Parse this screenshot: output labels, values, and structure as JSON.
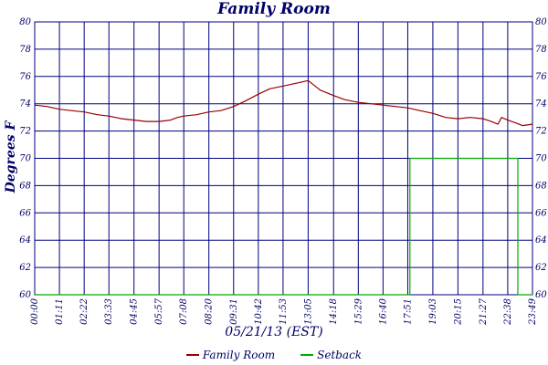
{
  "chart_data": {
    "type": "line",
    "title": "Family Room",
    "xlabel": "05/21/13 (EST)",
    "ylabel": "Degrees F",
    "ylim": [
      60,
      80
    ],
    "yticks": [
      60,
      62,
      64,
      66,
      68,
      70,
      72,
      74,
      76,
      78,
      80
    ],
    "xlim": [
      "00:00",
      "23:49"
    ],
    "xticks": [
      "00:00",
      "01:11",
      "02:22",
      "03:33",
      "04:45",
      "05:57",
      "07:08",
      "08:20",
      "09:31",
      "10:42",
      "11:53",
      "13:05",
      "14:18",
      "15:29",
      "16:40",
      "17:51",
      "19:03",
      "20:15",
      "21:27",
      "22:38",
      "23:49"
    ],
    "grid": true,
    "legend_position": "bottom",
    "series": [
      {
        "name": "Family Room",
        "color": "#990000",
        "points": [
          [
            "00:00",
            73.9
          ],
          [
            "00:35",
            73.8
          ],
          [
            "01:11",
            73.6
          ],
          [
            "01:45",
            73.5
          ],
          [
            "02:22",
            73.4
          ],
          [
            "03:00",
            73.2
          ],
          [
            "03:33",
            73.1
          ],
          [
            "04:10",
            72.9
          ],
          [
            "04:45",
            72.8
          ],
          [
            "05:20",
            72.7
          ],
          [
            "05:57",
            72.7
          ],
          [
            "06:30",
            72.8
          ],
          [
            "06:50",
            73.0
          ],
          [
            "07:08",
            73.1
          ],
          [
            "07:45",
            73.2
          ],
          [
            "08:20",
            73.4
          ],
          [
            "08:55",
            73.5
          ],
          [
            "09:31",
            73.8
          ],
          [
            "10:05",
            74.2
          ],
          [
            "10:42",
            74.7
          ],
          [
            "11:15",
            75.1
          ],
          [
            "11:53",
            75.3
          ],
          [
            "12:30",
            75.5
          ],
          [
            "13:05",
            75.7
          ],
          [
            "13:15",
            75.5
          ],
          [
            "13:40",
            75.0
          ],
          [
            "14:18",
            74.6
          ],
          [
            "14:50",
            74.3
          ],
          [
            "15:29",
            74.1
          ],
          [
            "16:05",
            74.0
          ],
          [
            "16:40",
            73.9
          ],
          [
            "17:15",
            73.8
          ],
          [
            "17:51",
            73.7
          ],
          [
            "18:25",
            73.5
          ],
          [
            "19:03",
            73.3
          ],
          [
            "19:40",
            73.0
          ],
          [
            "20:15",
            72.9
          ],
          [
            "20:50",
            73.0
          ],
          [
            "21:27",
            72.9
          ],
          [
            "21:50",
            72.7
          ],
          [
            "22:10",
            72.5
          ],
          [
            "22:20",
            73.0
          ],
          [
            "22:38",
            72.8
          ],
          [
            "23:00",
            72.6
          ],
          [
            "23:20",
            72.4
          ],
          [
            "23:49",
            72.5
          ]
        ]
      },
      {
        "name": "Setback",
        "color": "#00aa00",
        "points": [
          [
            "00:00",
            60
          ],
          [
            "17:57",
            60
          ],
          [
            "17:57",
            70
          ],
          [
            "23:07",
            70
          ],
          [
            "23:07",
            60
          ],
          [
            "23:49",
            60
          ]
        ]
      }
    ]
  }
}
